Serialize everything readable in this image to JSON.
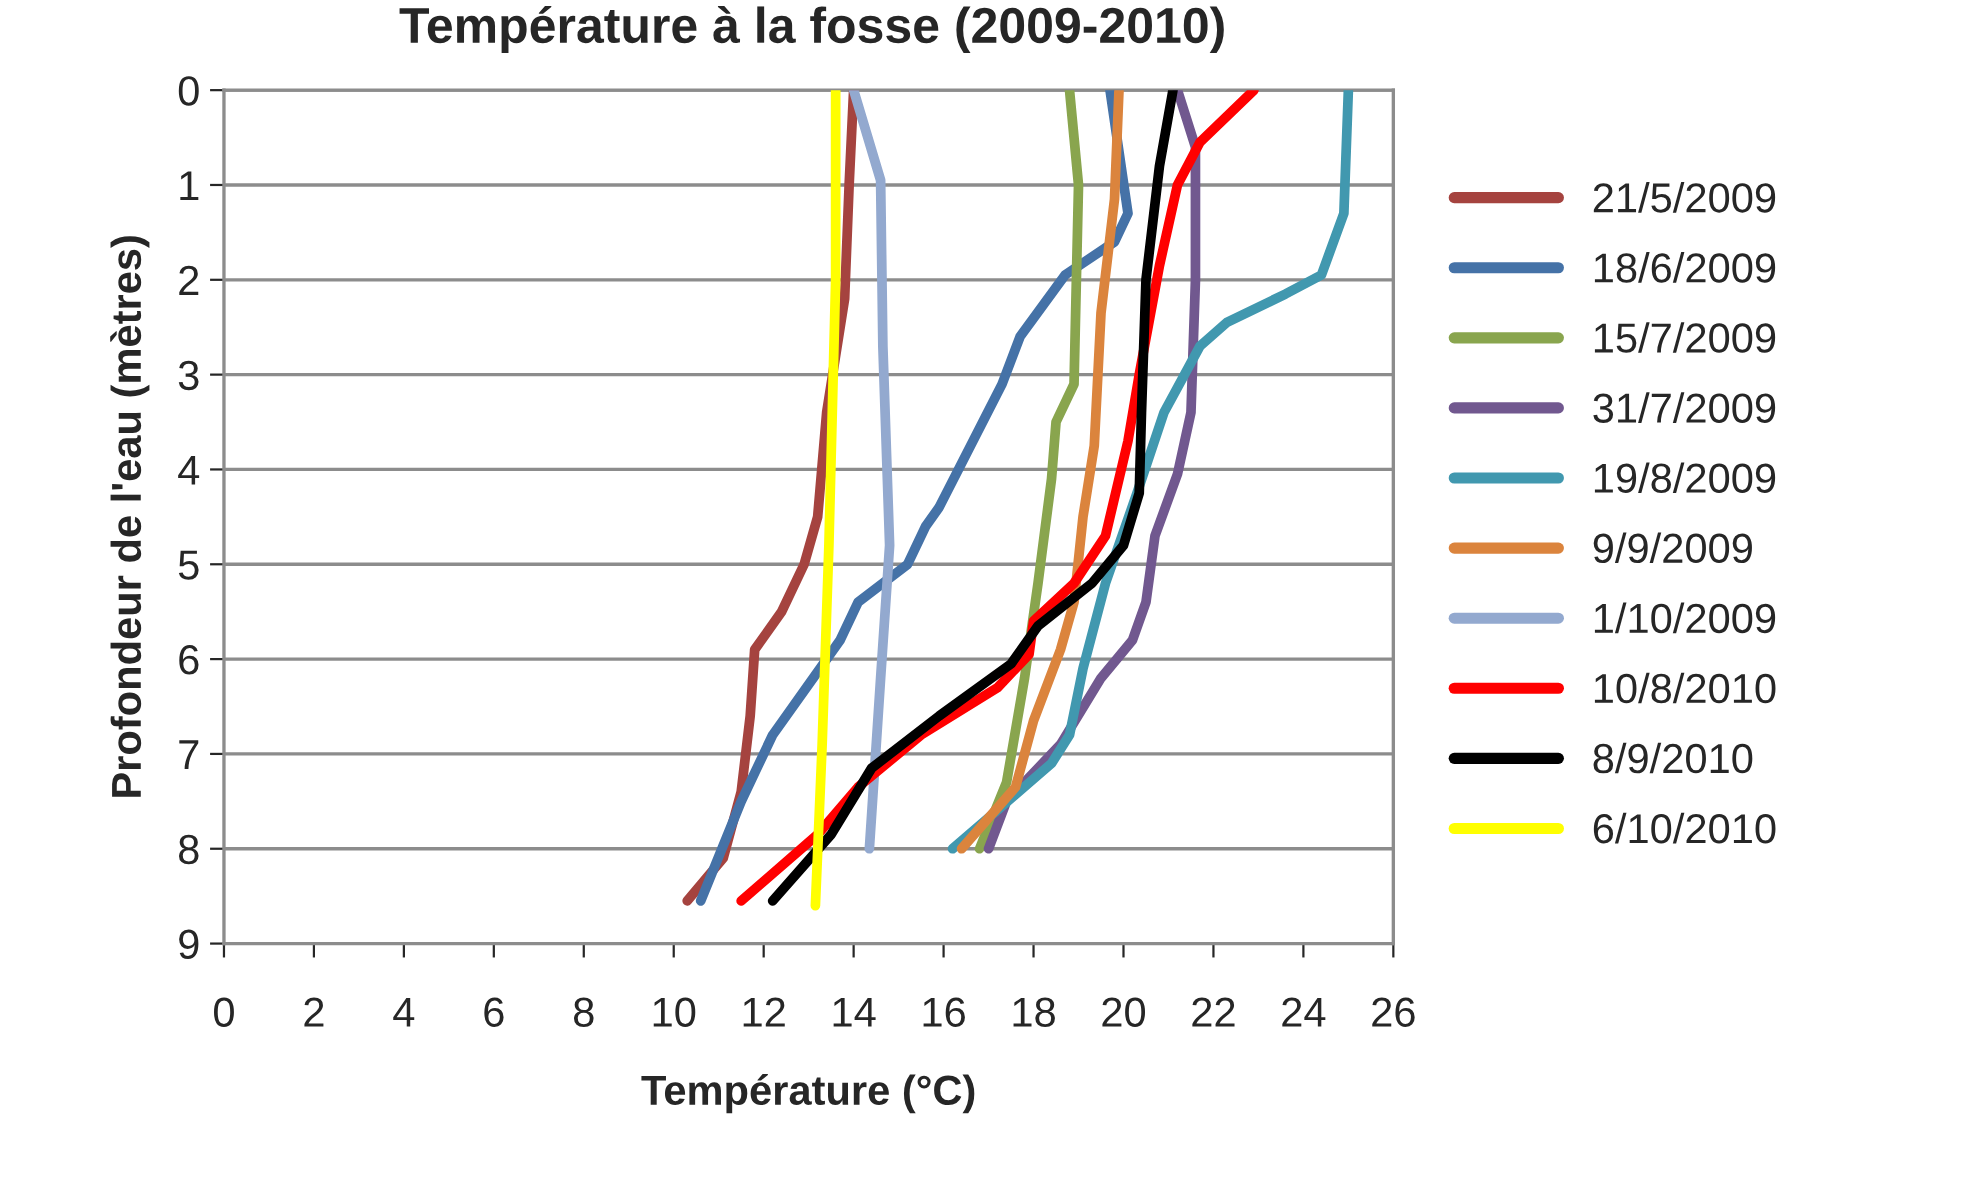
{
  "chart_data": {
    "type": "line",
    "title": "Température à la fosse (2009-2010)",
    "xlabel": "Température (°C)",
    "ylabel": "Profondeur de l'eau (mètres)",
    "xlim": [
      0,
      26
    ],
    "xticks": [
      0,
      2,
      4,
      6,
      8,
      10,
      12,
      14,
      16,
      18,
      20,
      22,
      24,
      26
    ],
    "ylim": [
      9,
      0
    ],
    "yticks": [
      0,
      1,
      2,
      3,
      4,
      5,
      6,
      7,
      8,
      9
    ],
    "grid": "y",
    "legend": "right",
    "marker": "none",
    "line_style": "solid",
    "series": [
      {
        "name": "21/5/2009",
        "color": "#a5433f",
        "x": [
          14.0,
          13.9,
          13.8,
          13.4,
          13.2,
          12.9,
          12.4,
          11.8,
          11.7,
          11.5,
          11.1,
          10.3
        ],
        "values": [
          0,
          1,
          2.2,
          3.4,
          4.5,
          5,
          5.5,
          5.9,
          6.6,
          7.4,
          8.1,
          8.55
        ]
      },
      {
        "name": "18/6/2009",
        "color": "#4572a7",
        "x": [
          19.7,
          20.1,
          19.8,
          18.7,
          17.7,
          17.3,
          15.9,
          15.6,
          15.2,
          14.1,
          13.7,
          13.1,
          12.2,
          11.5,
          10.6
        ],
        "values": [
          0,
          1.3,
          1.6,
          1.95,
          2.6,
          3.1,
          4.4,
          4.6,
          5,
          5.4,
          5.8,
          6.2,
          6.8,
          7.5,
          8.55
        ]
      },
      {
        "name": "15/7/2009",
        "color": "#89a54e",
        "x": [
          18.8,
          19.0,
          18.9,
          18.5,
          18.4,
          18.1,
          17.8,
          17.4,
          16.8
        ],
        "values": [
          0,
          1,
          3.1,
          3.5,
          4.1,
          5.2,
          6.2,
          7.3,
          8
        ]
      },
      {
        "name": "31/7/2009",
        "color": "#71588f",
        "x": [
          21.2,
          21.6,
          21.6,
          21.5,
          21.2,
          20.7,
          20.5,
          20.2,
          19.5,
          18.6,
          17.4,
          17.0
        ],
        "values": [
          0,
          0.6,
          2,
          3.4,
          4.05,
          4.7,
          5.4,
          5.8,
          6.2,
          6.9,
          7.5,
          8
        ]
      },
      {
        "name": "19/8/2009",
        "color": "#4198af",
        "x": [
          25.0,
          24.9,
          24.4,
          23.6,
          22.3,
          21.7,
          20.9,
          20.3,
          19.6,
          19.1,
          18.8,
          18.4,
          16.2
        ],
        "values": [
          0,
          1.3,
          1.95,
          2.15,
          2.45,
          2.7,
          3.4,
          4.25,
          5.2,
          6.1,
          6.8,
          7.1,
          8
        ]
      },
      {
        "name": "9/9/2009",
        "color": "#db843d",
        "x": [
          19.9,
          19.8,
          19.5,
          19.35,
          19.1,
          18.9,
          18.6,
          18.0,
          17.6,
          16.4
        ],
        "values": [
          0,
          1.15,
          2.35,
          3.75,
          4.5,
          5.4,
          5.9,
          6.65,
          7.35,
          8
        ]
      },
      {
        "name": "1/10/2009",
        "color": "#93a9cf",
        "x": [
          14.0,
          14.6,
          14.65,
          14.8,
          14.6,
          14.35
        ],
        "values": [
          0,
          0.95,
          2.7,
          4.8,
          6.2,
          8
        ]
      },
      {
        "name": "10/8/2010",
        "color": "#ff0000",
        "x": [
          22.9,
          21.7,
          21.2,
          20.8,
          20.35,
          20.1,
          19.9,
          19.6,
          18.9,
          18.0,
          17.9,
          17.2,
          15.5,
          14.1,
          13.2,
          11.5
        ],
        "values": [
          0,
          0.55,
          1,
          1.85,
          3,
          3.7,
          4.1,
          4.7,
          5.2,
          5.6,
          5.95,
          6.3,
          6.8,
          7.35,
          7.85,
          8.55
        ]
      },
      {
        "name": "8/9/2010",
        "color": "#000000",
        "x": [
          21.1,
          20.8,
          20.5,
          20.4,
          20.35,
          20.0,
          19.3,
          18.1,
          17.5,
          15.9,
          14.4,
          13.5,
          12.2
        ],
        "values": [
          0,
          0.8,
          2,
          3.4,
          4.25,
          4.8,
          5.2,
          5.65,
          6.05,
          6.6,
          7.15,
          7.85,
          8.55
        ]
      },
      {
        "name": "6/10/2010",
        "color": "#ffff00",
        "x": [
          13.6,
          13.6,
          13.45,
          13.3,
          13.15
        ],
        "values": [
          0,
          2,
          4.8,
          6.9,
          8.6
        ]
      }
    ]
  }
}
